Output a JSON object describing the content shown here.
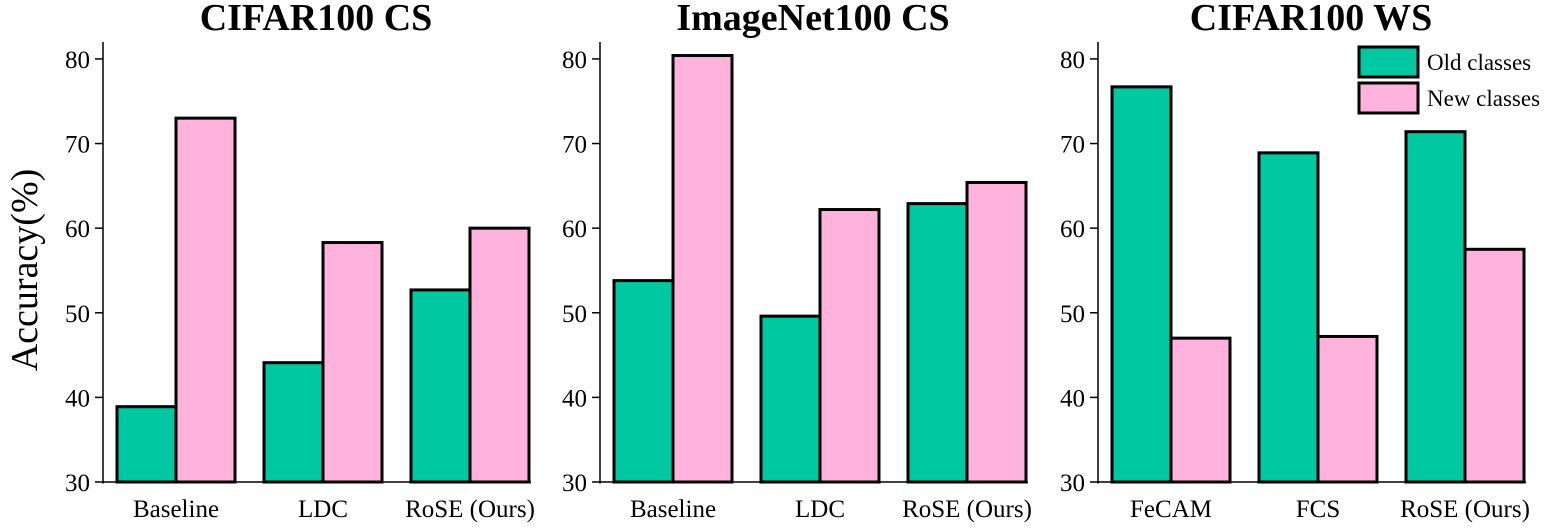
{
  "colors": {
    "old": "#00c8a0",
    "new": "#ffb3dc"
  },
  "ylabel": "Accuracy(%)",
  "legend": {
    "placement": "top-right",
    "labels": [
      "Old classes",
      "New classes"
    ]
  },
  "chart_data": [
    {
      "type": "bar",
      "title": "CIFAR100 CS",
      "categories": [
        "Baseline",
        "LDC",
        "RoSE (Ours)"
      ],
      "ylim": [
        30,
        82
      ],
      "yticks": [
        30,
        40,
        50,
        60,
        70,
        80
      ],
      "series": [
        {
          "name": "Old classes",
          "values": [
            38.9,
            44.1,
            52.7
          ]
        },
        {
          "name": "New classes",
          "values": [
            73.0,
            58.3,
            60.0
          ]
        }
      ]
    },
    {
      "type": "bar",
      "title": "ImageNet100 CS",
      "categories": [
        "Baseline",
        "LDC",
        "RoSE (Ours)"
      ],
      "ylim": [
        30,
        82
      ],
      "yticks": [
        30,
        40,
        50,
        60,
        70,
        80
      ],
      "series": [
        {
          "name": "Old classes",
          "values": [
            53.8,
            49.6,
            62.9
          ]
        },
        {
          "name": "New classes",
          "values": [
            80.4,
            62.2,
            65.4
          ]
        }
      ]
    },
    {
      "type": "bar",
      "title": "CIFAR100 WS",
      "categories": [
        "FeCAM",
        "FCS",
        "RoSE (Ours)"
      ],
      "ylim": [
        30,
        82
      ],
      "yticks": [
        30,
        40,
        50,
        60,
        70,
        80
      ],
      "series": [
        {
          "name": "Old classes",
          "values": [
            76.7,
            68.9,
            71.4
          ]
        },
        {
          "name": "New classes",
          "values": [
            47.0,
            47.2,
            57.5
          ]
        }
      ]
    }
  ]
}
